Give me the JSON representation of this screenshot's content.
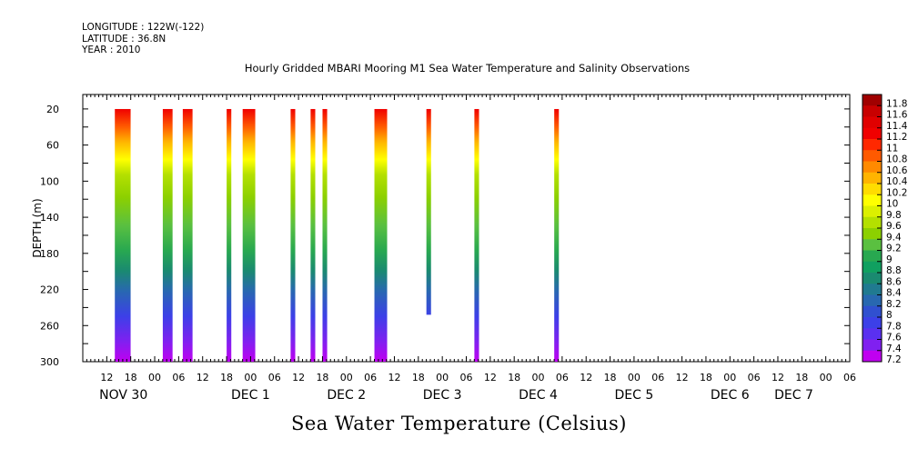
{
  "header": {
    "lines": [
      "LONGITUDE : 122W(-122)",
      "LATITUDE : 36.8N",
      "YEAR : 2010"
    ]
  },
  "chart_data": {
    "type": "heatmap",
    "title": "Hourly Gridded MBARI Mooring M1 Sea Water Temperature and Salinity Observations",
    "footer": "Sea Water Temperature (Celsius)",
    "xlabel": "",
    "ylabel": "DEPTH (m)",
    "x_range_hours": [
      6,
      198
    ],
    "y_range_m": [
      300,
      4
    ],
    "y_ticks": [
      20,
      60,
      100,
      140,
      180,
      220,
      260,
      300
    ],
    "x_tick_labels": [
      "12",
      "18",
      "00",
      "06",
      "12",
      "18",
      "00",
      "06",
      "12",
      "18",
      "00",
      "06",
      "12",
      "18",
      "00",
      "06",
      "12",
      "18",
      "00",
      "06",
      "12",
      "18",
      "00",
      "06",
      "12",
      "18",
      "00",
      "06",
      "12",
      "18",
      "00",
      "06"
    ],
    "x_day_labels": [
      "NOV 30",
      "DEC 1",
      "DEC 2",
      "DEC 3",
      "DEC 4",
      "DEC 5",
      "DEC 6",
      "DEC 7"
    ],
    "colorbar_labels": [
      "11.8",
      "11.6",
      "11.4",
      "11.2",
      "11",
      "10.8",
      "10.6",
      "10.4",
      "10.2",
      "10",
      "9.8",
      "9.6",
      "9.4",
      "9.2",
      "9",
      "8.8",
      "8.6",
      "8.4",
      "8.2",
      "8",
      "7.8",
      "7.6",
      "7.4",
      "7.2"
    ],
    "colorbar_colors": [
      "#a00000",
      "#c80000",
      "#e00000",
      "#f00000",
      "#ff2800",
      "#ff5a00",
      "#ff8a00",
      "#ffb400",
      "#ffdc00",
      "#ffff00",
      "#dcf000",
      "#b4e000",
      "#8cd000",
      "#5ac040",
      "#28a850",
      "#10a060",
      "#1a8a70",
      "#207a90",
      "#2868b0",
      "#3050d0",
      "#3c40e8",
      "#5a30f0",
      "#8020f0",
      "#c000f0"
    ],
    "bars": [
      {
        "start_hour": 14.0,
        "end_hour": 18.0,
        "max_depth_m": 300
      },
      {
        "start_hour": 26.0,
        "end_hour": 28.5,
        "max_depth_m": 300
      },
      {
        "start_hour": 31.0,
        "end_hour": 33.5,
        "max_depth_m": 300
      },
      {
        "start_hour": 42.0,
        "end_hour": 43.2,
        "max_depth_m": 300
      },
      {
        "start_hour": 46.0,
        "end_hour": 49.2,
        "max_depth_m": 300
      },
      {
        "start_hour": 58.0,
        "end_hour": 59.2,
        "max_depth_m": 300
      },
      {
        "start_hour": 63.0,
        "end_hour": 64.2,
        "max_depth_m": 300
      },
      {
        "start_hour": 66.0,
        "end_hour": 67.2,
        "max_depth_m": 300
      },
      {
        "start_hour": 79.0,
        "end_hour": 82.2,
        "max_depth_m": 300
      },
      {
        "start_hour": 92.0,
        "end_hour": 93.2,
        "max_depth_m": 248
      },
      {
        "start_hour": 104.0,
        "end_hour": 105.2,
        "max_depth_m": 300
      },
      {
        "start_hour": 124.0,
        "end_hour": 125.2,
        "max_depth_m": 300
      }
    ]
  }
}
